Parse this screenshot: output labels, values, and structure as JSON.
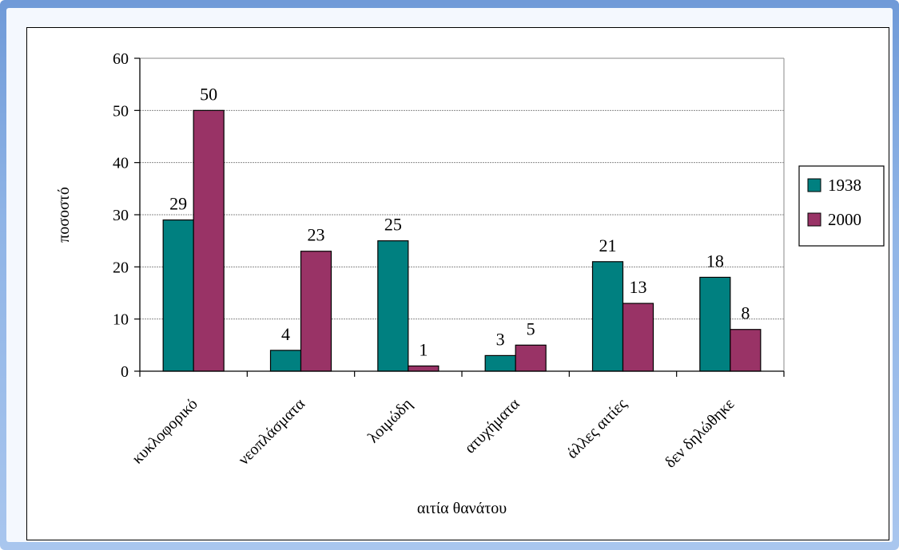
{
  "chart_data": {
    "type": "bar",
    "categories": [
      "κυκλοφορικό",
      "νεοπλάσματα",
      "λοιμώδη",
      "ατυχήματα",
      "άλλες αιτίες",
      "δεν δηλώθηκε"
    ],
    "series": [
      {
        "name": "1938",
        "values": [
          29,
          4,
          25,
          3,
          21,
          18
        ],
        "color": "#008080"
      },
      {
        "name": "2000",
        "values": [
          50,
          23,
          1,
          5,
          13,
          8
        ],
        "color": "#993366"
      }
    ],
    "xlabel": "αιτία θανάτου",
    "ylabel": "ποσοστό",
    "ylim": [
      0,
      60
    ],
    "yticks": [
      0,
      10,
      20,
      30,
      40,
      50,
      60
    ],
    "grid": true,
    "legend_position": "right"
  }
}
